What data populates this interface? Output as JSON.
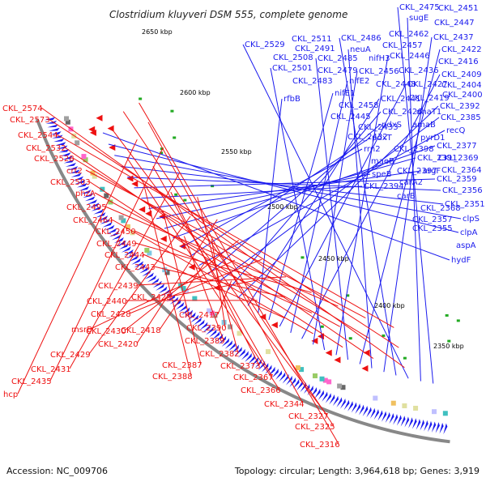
{
  "title": "Clostridium kluyveri DSM 555, complete genome",
  "accession": "Accession: NC_009706",
  "summary": "Topology: circular; Length: 3,964,618 bp; Genes: 3,919",
  "ticks": [
    "2650 kbp",
    "2600 kbp",
    "2550 kbp",
    "2500 kbp",
    "2450 kbp",
    "2400 kbp",
    "2350 kbp"
  ],
  "colors": {
    "forward": "#1a1aee",
    "reverse": "#ee1111",
    "backbone": "#888888",
    "rna": "#22aa22"
  },
  "forward_labels": [
    "CKL_2475",
    "CKL_2451",
    "sugE",
    "CKL_2447",
    "CKL_2529",
    "CKL_2511",
    "CKL_2486",
    "CKL_2462",
    "CKL_2437",
    "CKL_2491",
    "neuA",
    "CKL_2457",
    "CKL_2422",
    "CKL_2508",
    "CKL_2485",
    "nifH3",
    "CKL_2446",
    "CKL_2416",
    "CKL_2501",
    "CKL_2479",
    "CKL_2456",
    "CKL_2436",
    "CKL_2409",
    "CKL_2483",
    "nifE2",
    "CKL_2448",
    "CKL_2427",
    "CKL_2404",
    "nifE1",
    "CKL_2400",
    "rfbB",
    "CKL_2458",
    "CKL_2441",
    "CKL_2419",
    "CKL_2392",
    "CKL_2445",
    "CKL_2426",
    "dhaT1",
    "CKL_2385",
    "CKL_2433",
    "pdxS",
    "amaB",
    "recQ",
    "CKL_2432",
    "pdxT",
    "pyrD1",
    "rrn2",
    "CKL_2398",
    "CKL_2377",
    "maeB",
    "CKL_2391",
    "CKL_2369",
    "speB",
    "CKL_2397",
    "argF",
    "CKL_2364",
    "CKL_2394",
    "carA2",
    "CKL_2359",
    "carB",
    "CKL_2356",
    "CKL_2368",
    "CKL_2351",
    "CKL_2357",
    "clpS",
    "CKL_2355",
    "clpA",
    "aspA",
    "hydF"
  ],
  "reverse_labels": [
    "CKL_2574",
    "CKL_2573",
    "CKL_2544",
    "CKL_2532",
    "CKL_2528",
    "crt2",
    "CKL_2503",
    "phzA",
    "CKL_2495",
    "CKL_2464",
    "CKL_2450",
    "CKL_2449",
    "CKL_2444",
    "CKL_2443",
    "CKL_2439",
    "CKL_2440",
    "CKL_2425",
    "CKL_2428",
    "CKL_2417",
    "msrB",
    "CKL_2430",
    "CKL_2418",
    "CKL_2390",
    "CKL_2420",
    "CKL_2389",
    "CKL_2429",
    "CKL_2382",
    "CKL_2387",
    "CKL_2373",
    "CKL_2431",
    "CKL_2388",
    "CKL_2367",
    "CKL_2435",
    "CKL_2366",
    "hcp",
    "CKL_2344",
    "CKL_2327",
    "CKL_2325",
    "CKL_2316"
  ]
}
